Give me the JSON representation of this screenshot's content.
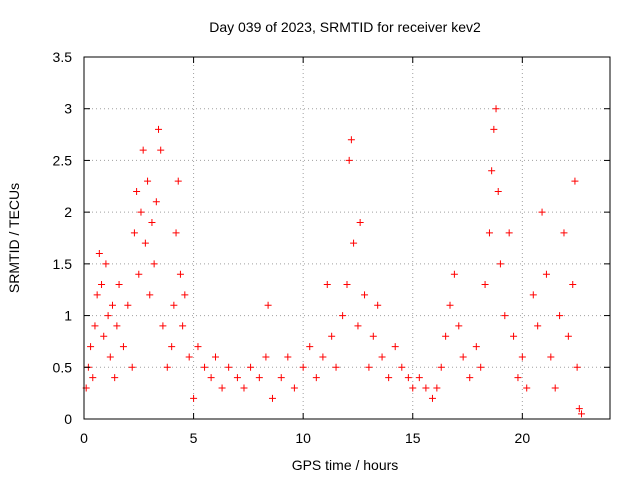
{
  "chart_data": {
    "type": "scatter",
    "title": "Day 039 of 2023, SRMTID for receiver kev2",
    "xlabel": "GPS time / hours",
    "ylabel": "SRMTID / TECUs",
    "xlim": [
      0,
      24
    ],
    "ylim": [
      0,
      3.5
    ],
    "xticks": [
      0,
      5,
      10,
      15,
      20
    ],
    "xtick_labels": [
      "0",
      "5",
      "10",
      "15",
      "20"
    ],
    "yticks": [
      0,
      0.5,
      1,
      1.5,
      2,
      2.5,
      3,
      3.5
    ],
    "ytick_labels": [
      "0",
      "0.5",
      "1",
      "1.5",
      "2",
      "2.5",
      "3",
      "3.5"
    ],
    "grid": true,
    "marker": "+",
    "color": "#ff0000",
    "series": [
      {
        "name": "SRMTID",
        "points": [
          [
            0.1,
            0.3
          ],
          [
            0.2,
            0.5
          ],
          [
            0.3,
            0.7
          ],
          [
            0.4,
            0.4
          ],
          [
            0.5,
            0.9
          ],
          [
            0.6,
            1.2
          ],
          [
            0.7,
            1.6
          ],
          [
            0.8,
            1.3
          ],
          [
            0.9,
            0.8
          ],
          [
            1.0,
            1.5
          ],
          [
            1.1,
            1.0
          ],
          [
            1.2,
            0.6
          ],
          [
            1.3,
            1.1
          ],
          [
            1.4,
            0.4
          ],
          [
            1.5,
            0.9
          ],
          [
            1.6,
            1.3
          ],
          [
            1.8,
            0.7
          ],
          [
            2.0,
            1.1
          ],
          [
            2.2,
            0.5
          ],
          [
            2.3,
            1.8
          ],
          [
            2.4,
            2.2
          ],
          [
            2.5,
            1.4
          ],
          [
            2.6,
            2.0
          ],
          [
            2.7,
            2.6
          ],
          [
            2.8,
            1.7
          ],
          [
            2.9,
            2.3
          ],
          [
            3.0,
            1.2
          ],
          [
            3.1,
            1.9
          ],
          [
            3.2,
            1.5
          ],
          [
            3.3,
            2.1
          ],
          [
            3.4,
            2.8
          ],
          [
            3.5,
            2.6
          ],
          [
            3.6,
            0.9
          ],
          [
            3.8,
            0.5
          ],
          [
            4.0,
            0.7
          ],
          [
            4.1,
            1.1
          ],
          [
            4.2,
            1.8
          ],
          [
            4.3,
            2.3
          ],
          [
            4.4,
            1.4
          ],
          [
            4.5,
            0.9
          ],
          [
            4.6,
            1.2
          ],
          [
            4.8,
            0.6
          ],
          [
            5.0,
            0.2
          ],
          [
            5.2,
            0.7
          ],
          [
            5.5,
            0.5
          ],
          [
            5.8,
            0.4
          ],
          [
            6.0,
            0.6
          ],
          [
            6.3,
            0.3
          ],
          [
            6.6,
            0.5
          ],
          [
            7.0,
            0.4
          ],
          [
            7.3,
            0.3
          ],
          [
            7.6,
            0.5
          ],
          [
            8.0,
            0.4
          ],
          [
            8.3,
            0.6
          ],
          [
            8.4,
            1.1
          ],
          [
            8.6,
            0.2
          ],
          [
            9.0,
            0.4
          ],
          [
            9.3,
            0.6
          ],
          [
            9.6,
            0.3
          ],
          [
            10.0,
            0.5
          ],
          [
            10.3,
            0.7
          ],
          [
            10.6,
            0.4
          ],
          [
            10.9,
            0.6
          ],
          [
            11.1,
            1.3
          ],
          [
            11.3,
            0.8
          ],
          [
            11.5,
            0.5
          ],
          [
            11.8,
            1.0
          ],
          [
            12.0,
            1.3
          ],
          [
            12.1,
            2.5
          ],
          [
            12.2,
            2.7
          ],
          [
            12.3,
            1.7
          ],
          [
            12.5,
            0.9
          ],
          [
            12.6,
            1.9
          ],
          [
            12.8,
            1.2
          ],
          [
            13.0,
            0.5
          ],
          [
            13.2,
            0.8
          ],
          [
            13.4,
            1.1
          ],
          [
            13.6,
            0.6
          ],
          [
            13.9,
            0.4
          ],
          [
            14.2,
            0.7
          ],
          [
            14.5,
            0.5
          ],
          [
            14.8,
            0.4
          ],
          [
            15.0,
            0.3
          ],
          [
            15.3,
            0.4
          ],
          [
            15.6,
            0.3
          ],
          [
            15.9,
            0.2
          ],
          [
            16.1,
            0.3
          ],
          [
            16.3,
            0.5
          ],
          [
            16.5,
            0.8
          ],
          [
            16.7,
            1.1
          ],
          [
            16.9,
            1.4
          ],
          [
            17.1,
            0.9
          ],
          [
            17.3,
            0.6
          ],
          [
            17.6,
            0.4
          ],
          [
            17.9,
            0.7
          ],
          [
            18.1,
            0.5
          ],
          [
            18.3,
            1.3
          ],
          [
            18.5,
            1.8
          ],
          [
            18.6,
            2.4
          ],
          [
            18.7,
            2.8
          ],
          [
            18.8,
            3.0
          ],
          [
            18.9,
            2.2
          ],
          [
            19.0,
            1.5
          ],
          [
            19.2,
            1.0
          ],
          [
            19.4,
            1.8
          ],
          [
            19.6,
            0.8
          ],
          [
            19.8,
            0.4
          ],
          [
            20.0,
            0.6
          ],
          [
            20.2,
            0.3
          ],
          [
            20.5,
            1.2
          ],
          [
            20.7,
            0.9
          ],
          [
            20.9,
            2.0
          ],
          [
            21.1,
            1.4
          ],
          [
            21.3,
            0.6
          ],
          [
            21.5,
            0.3
          ],
          [
            21.7,
            1.0
          ],
          [
            21.9,
            1.8
          ],
          [
            22.1,
            0.8
          ],
          [
            22.3,
            1.3
          ],
          [
            22.4,
            2.3
          ],
          [
            22.5,
            0.5
          ],
          [
            22.6,
            0.1
          ],
          [
            22.7,
            0.05
          ]
        ]
      }
    ]
  }
}
